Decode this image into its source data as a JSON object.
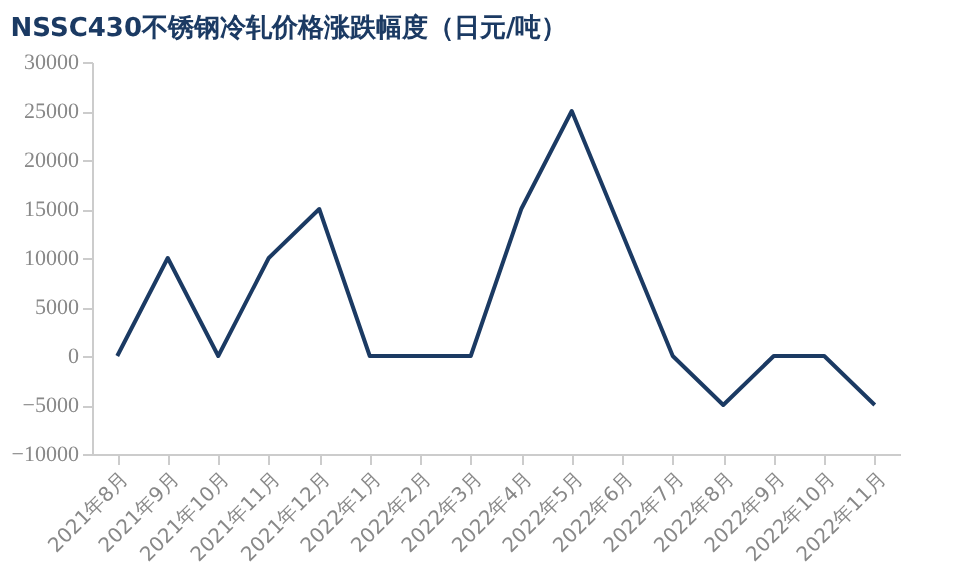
{
  "chart_data": {
    "type": "line",
    "title": "NSSC430不锈钢冷轧价格涨跌幅度（日元/吨）",
    "categories": [
      "2021年8月",
      "2021年9月",
      "2021年10月",
      "2021年11月",
      "2021年12月",
      "2022年1月",
      "2022年2月",
      "2022年3月",
      "2022年4月",
      "2022年5月",
      "2022年6月",
      "2022年7月",
      "2022年8月",
      "2022年9月",
      "2022年10月",
      "2022年11月"
    ],
    "series": [
      {
        "color": "#1b3a63",
        "values": [
          0,
          10000,
          0,
          10000,
          15000,
          0,
          0,
          0,
          15000,
          25000,
          12500,
          0,
          -5000,
          0,
          0,
          -5000
        ]
      }
    ],
    "ylim": [
      -10000,
      30000
    ],
    "yticks": [
      -10000,
      -5000,
      0,
      5000,
      10000,
      15000,
      20000,
      25000,
      30000
    ],
    "grid": false,
    "legend": false,
    "marker": "none",
    "line_style": "solid"
  }
}
